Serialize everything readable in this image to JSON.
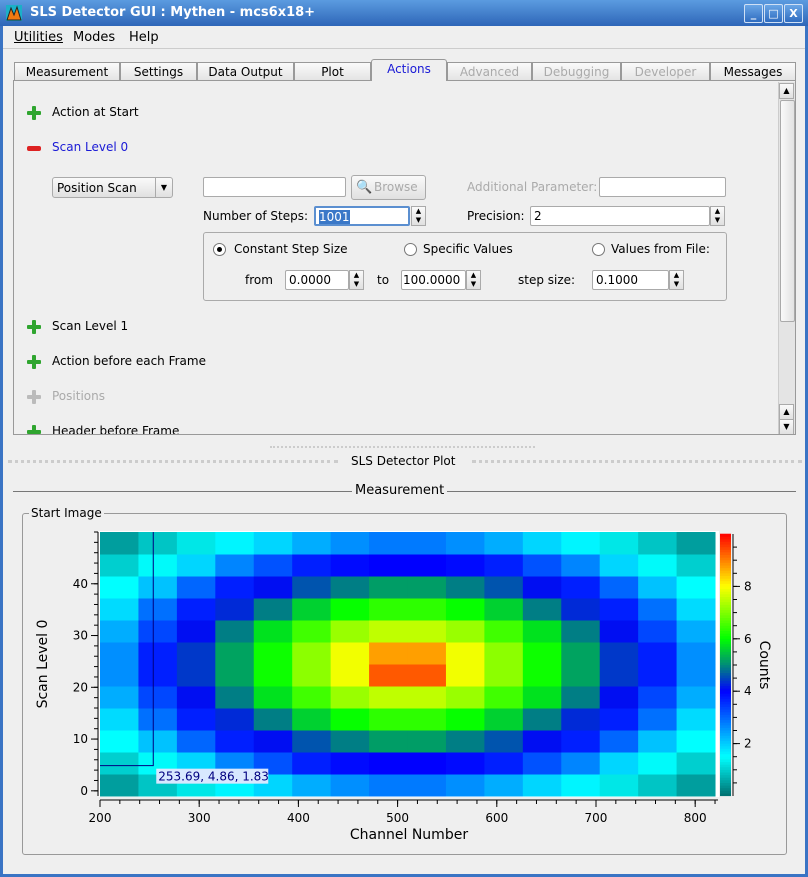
{
  "window": {
    "title": "SLS Detector GUI : Mythen - mcs6x18+",
    "minimize": "_",
    "maximize": "□",
    "close": "X"
  },
  "menu": [
    "Utilities",
    "Modes",
    "Help"
  ],
  "tabs": [
    {
      "label": "Measurement",
      "state": "normal"
    },
    {
      "label": "Settings",
      "state": "normal"
    },
    {
      "label": "Data Output",
      "state": "normal"
    },
    {
      "label": "Plot",
      "state": "normal"
    },
    {
      "label": "Actions",
      "state": "active"
    },
    {
      "label": "Advanced",
      "state": "disabled"
    },
    {
      "label": "Debugging",
      "state": "disabled"
    },
    {
      "label": "Developer",
      "state": "disabled"
    },
    {
      "label": "Messages",
      "state": "normal"
    }
  ],
  "actions": {
    "action_at_start": "Action at Start",
    "scan_level_0": "Scan Level 0",
    "scan_type": "Position Scan",
    "file_value": "",
    "browse": "Browse",
    "additional_parameter_label": "Additional Parameter:",
    "additional_parameter_value": "",
    "steps_label": "Number of Steps:",
    "steps_value": "1001",
    "precision_label": "Precision:",
    "precision_value": "2",
    "radio_constant": "Constant Step Size",
    "radio_specific": "Specific Values",
    "radio_file": "Values from File:",
    "selected_radio": "Constant Step Size",
    "from_label": "from",
    "from_value": "0.0000",
    "to_label": "to",
    "to_value": "100.0000",
    "step_label": "step size:",
    "step_value": "0.1000",
    "scan_level_1": "Scan Level 1",
    "action_before_frame": "Action before each Frame",
    "positions": "Positions",
    "header_before_frame": "Header before Frame"
  },
  "plot_dock": {
    "title": "SLS Detector Plot",
    "section": "Measurement",
    "group": "Start Image"
  },
  "chart_data": {
    "type": "heatmap",
    "xlabel": "Channel Number",
    "ylabel": "Scan Level 0",
    "colorbar_label": "Counts",
    "xlim": [
      200,
      823
    ],
    "ylim": [
      -1,
      50
    ],
    "clim": [
      0,
      10
    ],
    "xticks": [
      200,
      300,
      400,
      500,
      600,
      700,
      800
    ],
    "yticks": [
      0,
      10,
      20,
      30,
      40
    ],
    "cticks": [
      2,
      4,
      6,
      8
    ],
    "x_bin_edges": [
      200,
      238.75,
      277.5,
      316.25,
      355,
      393.75,
      432.5,
      471.25,
      510,
      548.75,
      587.5,
      626.25,
      665,
      703.75,
      742.5,
      781.25,
      820
    ],
    "y_bin_edges": [
      -1,
      3.25,
      7.5,
      11.75,
      16,
      20.25,
      24.5,
      28.75,
      33,
      37.25,
      41.5,
      45.75,
      50
    ],
    "z": [
      [
        0.5,
        0.9,
        1.25,
        1.6,
        1.9,
        2.3,
        2.6,
        2.8,
        2.8,
        2.6,
        2.3,
        1.9,
        1.6,
        1.25,
        0.9,
        0.5
      ],
      [
        1.0,
        1.45,
        1.9,
        2.7,
        3.2,
        3.7,
        3.9,
        4.0,
        4.0,
        3.9,
        3.7,
        3.2,
        2.7,
        1.9,
        1.45,
        1.0
      ],
      [
        1.5,
        2.1,
        3.0,
        3.7,
        4.1,
        4.6,
        4.9,
        5.15,
        5.15,
        4.9,
        4.6,
        4.1,
        3.7,
        3.0,
        2.1,
        1.5
      ],
      [
        1.85,
        2.9,
        3.7,
        4.3,
        4.9,
        5.6,
        6.05,
        6.35,
        6.35,
        6.05,
        5.6,
        4.9,
        4.3,
        3.7,
        2.9,
        1.85
      ],
      [
        2.3,
        3.3,
        4.1,
        4.9,
        5.75,
        6.5,
        7.2,
        7.5,
        7.5,
        7.2,
        6.5,
        5.75,
        4.9,
        4.1,
        3.3,
        2.3
      ],
      [
        2.6,
        3.7,
        4.4,
        5.2,
        6.1,
        7.1,
        7.9,
        9.3,
        9.3,
        7.9,
        7.1,
        6.1,
        5.2,
        4.4,
        3.7,
        2.6
      ],
      [
        2.6,
        3.7,
        4.4,
        5.2,
        6.1,
        7.1,
        7.9,
        8.75,
        8.75,
        7.9,
        7.1,
        6.1,
        5.2,
        4.4,
        3.7,
        2.6
      ],
      [
        2.3,
        3.3,
        4.1,
        4.9,
        5.75,
        6.5,
        7.2,
        7.5,
        7.5,
        7.2,
        6.5,
        5.75,
        4.9,
        4.1,
        3.3,
        2.3
      ],
      [
        1.85,
        2.9,
        3.7,
        4.3,
        4.9,
        5.6,
        6.05,
        6.35,
        6.35,
        6.05,
        5.6,
        4.9,
        4.3,
        3.7,
        2.9,
        1.85
      ],
      [
        1.5,
        2.1,
        3.0,
        3.7,
        4.1,
        4.6,
        4.9,
        5.15,
        5.15,
        4.9,
        4.6,
        4.1,
        3.7,
        3.0,
        2.1,
        1.5
      ],
      [
        1.0,
        1.45,
        1.9,
        2.7,
        3.2,
        3.7,
        3.9,
        4.0,
        4.0,
        3.9,
        3.7,
        3.2,
        2.7,
        1.9,
        1.45,
        1.0
      ],
      [
        0.5,
        0.9,
        1.25,
        1.6,
        1.9,
        2.3,
        2.6,
        2.8,
        2.8,
        2.6,
        2.3,
        1.9,
        1.6,
        1.25,
        0.9,
        0.5
      ]
    ],
    "cursor": {
      "x": 253.69,
      "y": 4.86,
      "z": 1.83,
      "label": "253.69, 4.86, 1.83"
    }
  }
}
